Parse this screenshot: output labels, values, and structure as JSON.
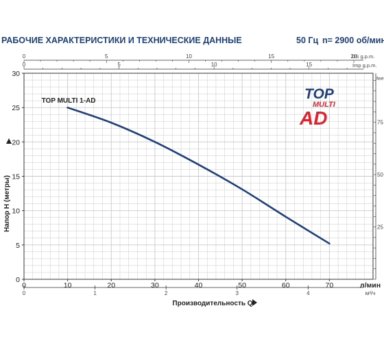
{
  "header": {
    "title": "РАБОЧИЕ ХАРАКТЕРИСТИКИ И ТЕХНИЧЕСКИЕ ДАННЫЕ",
    "frequency": "50 Гц",
    "speed": "n= 2900 об/мин"
  },
  "logo": {
    "line1": "TOP",
    "line2": "MULTI",
    "line3": "AD"
  },
  "colors": {
    "curve": "#1f3f7a",
    "grid": "#c9c9c9",
    "axis": "#333333",
    "title": "#1f3f7a",
    "logo_blue": "#1f3f7a",
    "logo_red": "#e5202e"
  },
  "chart_data": {
    "type": "line",
    "title": "РАБОЧИЕ ХАРАКТЕРИСТИКИ И ТЕХНИЧЕСКИЕ ДАННЫЕ",
    "xlabel": "Производительность Q",
    "ylabel": "Напор H (метры)",
    "x_unit": "л/мин",
    "xlim": [
      0,
      80
    ],
    "ylim": [
      0,
      30
    ],
    "x_ticks": [
      0,
      10,
      20,
      30,
      40,
      50,
      60,
      70
    ],
    "y_ticks": [
      0,
      5,
      10,
      15,
      20,
      25,
      30
    ],
    "grid": true,
    "series": [
      {
        "name": "TOP MULTI 1-AD",
        "x": [
          10,
          20,
          30,
          40,
          50,
          60,
          70
        ],
        "y": [
          25,
          22.8,
          20,
          16.7,
          13.1,
          9.1,
          5.2
        ]
      }
    ],
    "secondary_axes": {
      "us_gpm": {
        "label": "US g.p.m.",
        "ticks": [
          0,
          5,
          10,
          15,
          20
        ]
      },
      "imp_gpm": {
        "label": "Imp g.p.m.",
        "ticks": [
          0,
          5,
          10,
          15
        ]
      },
      "m3h": {
        "label": "м³/ч",
        "ticks": [
          0,
          1,
          2,
          3,
          4
        ]
      },
      "feet": {
        "label": "feet",
        "ticks": [
          25,
          50,
          75
        ]
      }
    }
  }
}
